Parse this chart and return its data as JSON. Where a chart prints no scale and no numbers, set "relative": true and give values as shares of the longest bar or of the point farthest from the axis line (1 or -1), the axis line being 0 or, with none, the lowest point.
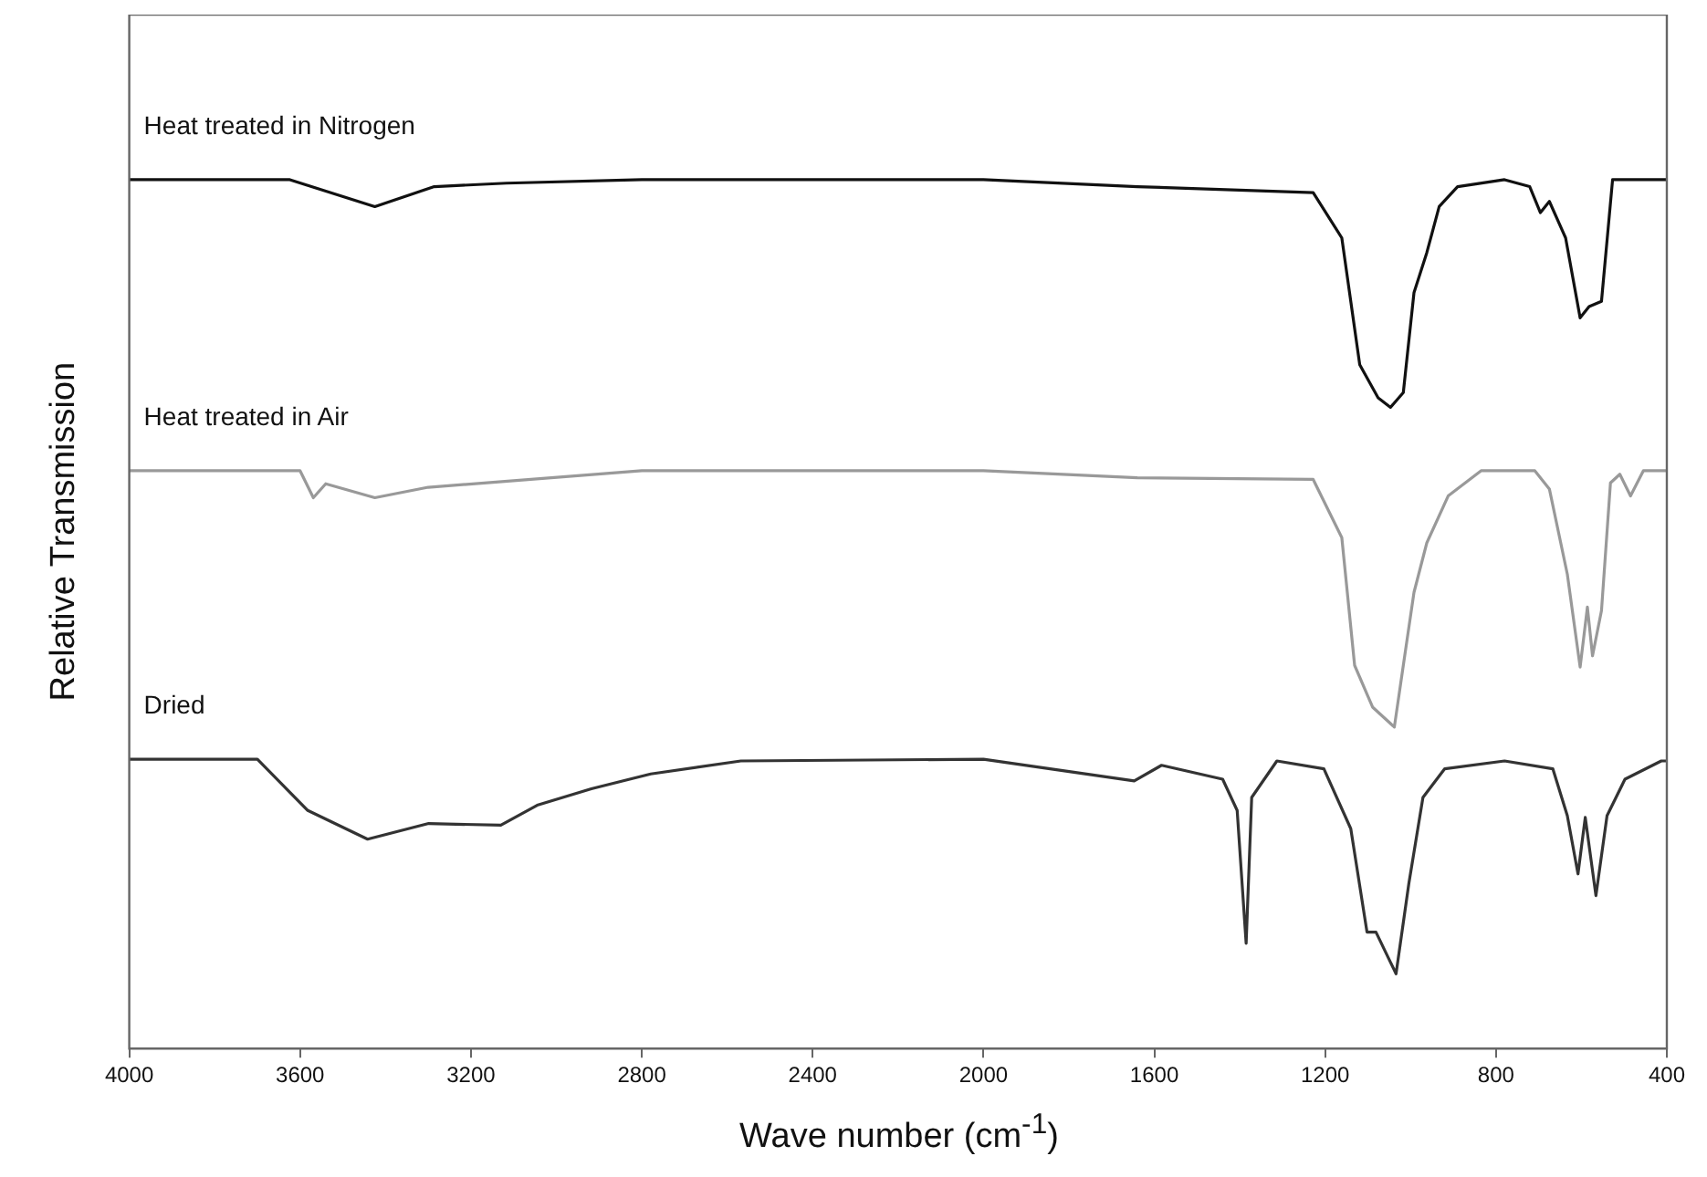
{
  "chart_data": {
    "type": "line",
    "xlabel": "Wave number (cm$^{-1}$)",
    "ylabel": "Relative Transmission",
    "relative": true,
    "xlim": [
      4000,
      400
    ],
    "xticks": [
      4000,
      3600,
      3200,
      2800,
      2400,
      2000,
      1600,
      1200,
      800,
      400
    ],
    "grid": false,
    "legend": false,
    "marker": "none",
    "line_style": "solid",
    "series": [
      {
        "name": "Heat treated in Nitrogen",
        "color": "#111111",
        "x": [
          4000,
          3624,
          3425,
          3286,
          3117,
          2800,
          2000,
          1640,
          1228,
          1161,
          1119,
          1076,
          1047,
          1017,
          992,
          962,
          933,
          890,
          780,
          721,
          696,
          675,
          637,
          603,
          582,
          553,
          527,
          400
        ],
        "values": [
          1.0,
          1.0,
          0.969,
          0.992,
          0.996,
          1.0,
          1.0,
          0.992,
          0.985,
          0.933,
          0.787,
          0.749,
          0.738,
          0.755,
          0.87,
          0.916,
          0.969,
          0.992,
          1.0,
          0.992,
          0.962,
          0.975,
          0.933,
          0.841,
          0.854,
          0.86,
          1.0,
          1.0
        ]
      },
      {
        "name": "Heat treated in Air",
        "color": "#999999",
        "x": [
          4000,
          3600,
          3569,
          3540,
          3425,
          3300,
          2800,
          2000,
          1640,
          1228,
          1161,
          1131,
          1089,
          1038,
          1017,
          992,
          962,
          912,
          835,
          709,
          675,
          633,
          603,
          586,
          574,
          553,
          532,
          510,
          485,
          455,
          400
        ],
        "values": [
          0.665,
          0.665,
          0.634,
          0.65,
          0.634,
          0.646,
          0.665,
          0.665,
          0.657,
          0.655,
          0.588,
          0.441,
          0.393,
          0.37,
          0.441,
          0.525,
          0.582,
          0.636,
          0.665,
          0.665,
          0.644,
          0.546,
          0.439,
          0.508,
          0.452,
          0.504,
          0.651,
          0.661,
          0.636,
          0.665,
          0.665
        ]
      },
      {
        "name": "Dried",
        "color": "#333333",
        "x": [
          4000,
          3700,
          3582,
          3442,
          3299,
          3130,
          3045,
          2918,
          2779,
          2568,
          2000,
          1647,
          1583,
          1440,
          1406,
          1385,
          1372,
          1313,
          1203,
          1140,
          1102,
          1081,
          1034,
          1004,
          971,
          920,
          780,
          667,
          633,
          608,
          591,
          566,
          540,
          498,
          413,
          400
        ],
        "values": [
          0.333,
          0.333,
          0.274,
          0.241,
          0.259,
          0.257,
          0.28,
          0.299,
          0.316,
          0.331,
          0.333,
          0.308,
          0.326,
          0.31,
          0.274,
          0.121,
          0.289,
          0.331,
          0.322,
          0.253,
          0.134,
          0.134,
          0.086,
          0.19,
          0.289,
          0.322,
          0.331,
          0.322,
          0.268,
          0.201,
          0.266,
          0.176,
          0.268,
          0.31,
          0.331,
          0.331
        ]
      }
    ]
  }
}
